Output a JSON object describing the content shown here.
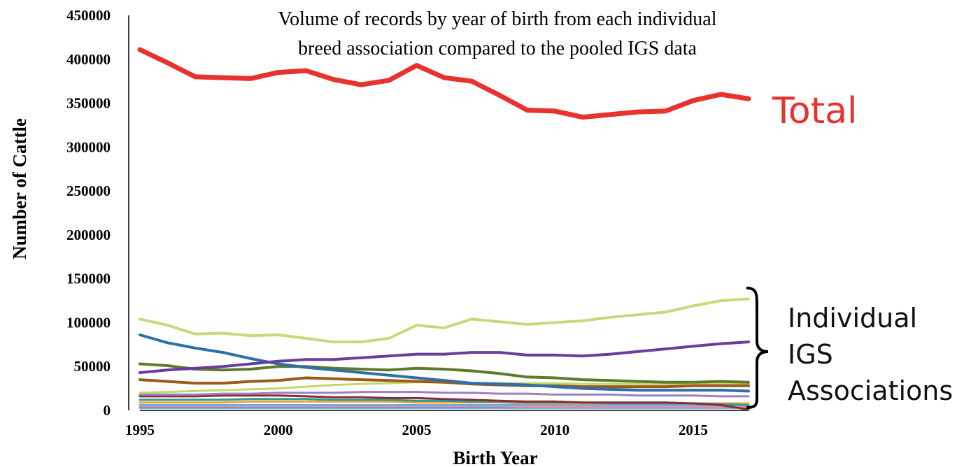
{
  "chart_data": {
    "type": "line",
    "title": [
      "Volume of records by year of birth from each individual",
      "breed association compared to the pooled IGS data"
    ],
    "xlabel": "Birth Year",
    "ylabel": "Number of Cattle",
    "xlim": [
      1995,
      2017
    ],
    "ylim": [
      0,
      450000
    ],
    "xticks": [
      1995,
      2000,
      2005,
      2010,
      2015
    ],
    "yticks": [
      0,
      50000,
      100000,
      150000,
      200000,
      250000,
      300000,
      350000,
      400000,
      450000
    ],
    "grid": false,
    "legend": "none",
    "annotations": {
      "total": "Total",
      "individual": [
        "Individual",
        "IGS",
        "Associations"
      ]
    },
    "x": [
      1995,
      1996,
      1997,
      1998,
      1999,
      2000,
      2001,
      2002,
      2003,
      2004,
      2005,
      2006,
      2007,
      2008,
      2009,
      2010,
      2011,
      2012,
      2013,
      2014,
      2015,
      2016,
      2017
    ],
    "series": [
      {
        "color": "#e8322d",
        "width": 7,
        "values": [
          411000,
          396000,
          380000,
          379000,
          378000,
          385000,
          387000,
          377000,
          371000,
          376000,
          393000,
          379000,
          375000,
          359000,
          342000,
          341000,
          334000,
          337000,
          340000,
          341000,
          353000,
          360000,
          355000
        ]
      },
      {
        "color": "#c2dc7a",
        "width": 4,
        "values": [
          104000,
          97000,
          87000,
          88000,
          85000,
          86000,
          82000,
          78000,
          78000,
          82000,
          97000,
          94000,
          104000,
          101000,
          98000,
          100000,
          102000,
          106000,
          109000,
          112000,
          119000,
          125000,
          127000
        ]
      },
      {
        "color": "#6a3d9a",
        "width": 4,
        "values": [
          43000,
          46000,
          48000,
          50000,
          53000,
          56000,
          58000,
          58000,
          60000,
          62000,
          64000,
          64000,
          66000,
          66000,
          63000,
          63000,
          62000,
          64000,
          67000,
          70000,
          73000,
          76000,
          78000
        ]
      },
      {
        "color": "#2e6fa8",
        "width": 4,
        "values": [
          86000,
          77000,
          71000,
          66000,
          59000,
          53000,
          49000,
          46000,
          43000,
          40000,
          37000,
          34000,
          31000,
          30000,
          29000,
          27000,
          25000,
          24000,
          23000,
          23000,
          23000,
          23000,
          22000
        ]
      },
      {
        "color": "#5f7a2b",
        "width": 4,
        "values": [
          53000,
          51000,
          47000,
          46000,
          47000,
          50000,
          50000,
          48000,
          47000,
          46000,
          48000,
          47000,
          45000,
          42000,
          38000,
          37000,
          35000,
          34000,
          33000,
          32000,
          32000,
          33000,
          32000
        ]
      },
      {
        "color": "#9c5a1a",
        "width": 4,
        "values": [
          35000,
          33000,
          31000,
          31000,
          33000,
          34000,
          37000,
          36000,
          35000,
          34000,
          33000,
          32000,
          30000,
          29000,
          28000,
          28000,
          27000,
          27000,
          27000,
          27000,
          28000,
          28000,
          28000
        ]
      },
      {
        "color": "#c3d86b",
        "width": 3,
        "values": [
          20000,
          21000,
          22000,
          23000,
          24000,
          25000,
          27000,
          29000,
          30000,
          31000,
          32000,
          32000,
          31000,
          31000,
          31000,
          31000,
          30000,
          30000,
          30000,
          30000,
          30000,
          30000,
          30000
        ]
      },
      {
        "color": "#a07fc4",
        "width": 3,
        "values": [
          18000,
          18000,
          18000,
          19000,
          19000,
          20000,
          20000,
          20000,
          21000,
          21000,
          21000,
          20000,
          20000,
          19000,
          19000,
          18000,
          18000,
          18000,
          17000,
          17000,
          17000,
          16000,
          16000
        ]
      },
      {
        "color": "#8a2d3b",
        "width": 3,
        "values": [
          16000,
          16000,
          16000,
          17000,
          17000,
          17000,
          16000,
          15000,
          15000,
          14000,
          14000,
          13000,
          12000,
          11000,
          10000,
          10000,
          9000,
          9000,
          9000,
          9000,
          8000,
          6000,
          1000
        ]
      },
      {
        "color": "#2a9d8f",
        "width": 3,
        "values": [
          12000,
          12000,
          12000,
          12000,
          13000,
          13000,
          13000,
          12000,
          12000,
          12000,
          11000,
          11000,
          10000,
          10000,
          9000,
          9000,
          9000,
          8000,
          8000,
          8000,
          8000,
          7000,
          6000
        ]
      },
      {
        "color": "#f2a23a",
        "width": 3,
        "values": [
          9000,
          9000,
          9000,
          9000,
          10000,
          10000,
          10000,
          10000,
          10000,
          10000,
          9000,
          9000,
          9000,
          9000,
          8000,
          8000,
          8000,
          8000,
          8000,
          8000,
          8000,
          8000,
          8000
        ]
      },
      {
        "color": "#7fa7d6",
        "width": 3,
        "values": [
          6000,
          6000,
          6000,
          6000,
          6000,
          6000,
          6000,
          6000,
          6000,
          6000,
          6000,
          6000,
          6000,
          6000,
          6000,
          6000,
          6000,
          6000,
          6000,
          6000,
          6000,
          6000,
          6000
        ]
      },
      {
        "color": "#e58fb0",
        "width": 3,
        "values": [
          5000,
          5000,
          5000,
          5000,
          5000,
          5000,
          5000,
          5000,
          5000,
          5000,
          5000,
          5000,
          5000,
          5000,
          4000,
          4000,
          4000,
          4000,
          4000,
          4000,
          4000,
          4000,
          4000
        ]
      },
      {
        "color": "#4b9fd9",
        "width": 3,
        "values": [
          3000,
          3000,
          3000,
          3000,
          3000,
          3000,
          3000,
          3000,
          3000,
          3000,
          3000,
          3000,
          3000,
          3000,
          3000,
          3000,
          3000,
          3000,
          3000,
          3000,
          3000,
          3000,
          3000
        ]
      }
    ]
  }
}
